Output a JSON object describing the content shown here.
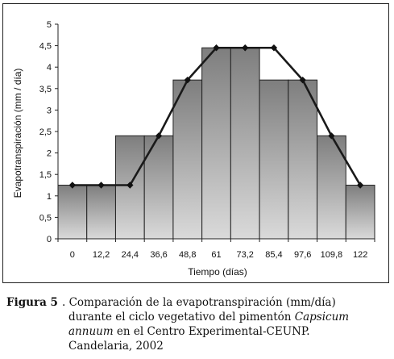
{
  "chart_data": {
    "type": "bar",
    "categories": [
      "0",
      "12,2",
      "24,4",
      "36,6",
      "48,8",
      "61",
      "73,2",
      "85,4",
      "97,6",
      "109,8",
      "122"
    ],
    "x": [
      0,
      12.2,
      24.4,
      36.6,
      48.8,
      61,
      73.2,
      85.4,
      97.6,
      109.8,
      122
    ],
    "series": [
      {
        "type": "bar",
        "values": [
          1.25,
          1.25,
          2.4,
          2.4,
          3.7,
          4.45,
          4.45,
          3.7,
          3.7,
          2.4,
          1.25
        ]
      },
      {
        "type": "line",
        "values": [
          1.25,
          1.25,
          1.25,
          2.4,
          3.7,
          4.45,
          4.45,
          4.45,
          3.7,
          2.4,
          1.25
        ]
      }
    ],
    "xlabel": "Tiempo (días)",
    "ylabel": "Evapotranspiración (mm / día)",
    "ylim": [
      0,
      5
    ],
    "yticks": [
      "0",
      "0,5",
      "1",
      "1,5",
      "2",
      "2,5",
      "3",
      "3,5",
      "4",
      "4,5",
      "5"
    ],
    "grid": false,
    "legend": "none"
  },
  "caption": {
    "label": "Figura 5",
    "text_1": ". Comparación de la evapotranspiración (mm/día)",
    "text_2a": "durante el ciclo vegetativo del pimentón ",
    "species_1": "Capsicum",
    "species_2": "annuum",
    "text_3": " en el Centro Experimental-CEUNP.",
    "text_4": "Candelaria, 2002"
  }
}
